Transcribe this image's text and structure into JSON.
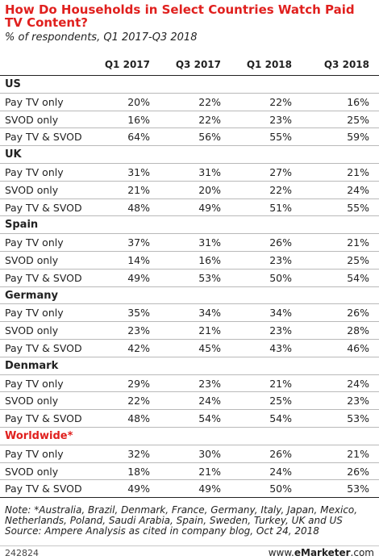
{
  "title": "How Do Households in Select Countries Watch Paid TV Content?",
  "subtitle": "% of respondents, Q1 2017-Q3 2018",
  "chart_data": {
    "type": "table",
    "columns": [
      "Q1 2017",
      "Q3 2017",
      "Q1 2018",
      "Q3 2018"
    ],
    "groups": [
      {
        "name": "US",
        "highlight": false,
        "rows": [
          {
            "label": "Pay TV only",
            "values": [
              "20%",
              "22%",
              "22%",
              "16%"
            ]
          },
          {
            "label": "SVOD only",
            "values": [
              "16%",
              "22%",
              "23%",
              "25%"
            ]
          },
          {
            "label": "Pay TV & SVOD",
            "values": [
              "64%",
              "56%",
              "55%",
              "59%"
            ]
          }
        ]
      },
      {
        "name": "UK",
        "highlight": false,
        "rows": [
          {
            "label": "Pay TV only",
            "values": [
              "31%",
              "31%",
              "27%",
              "21%"
            ]
          },
          {
            "label": "SVOD only",
            "values": [
              "21%",
              "20%",
              "22%",
              "24%"
            ]
          },
          {
            "label": "Pay TV & SVOD",
            "values": [
              "48%",
              "49%",
              "51%",
              "55%"
            ]
          }
        ]
      },
      {
        "name": "Spain",
        "highlight": false,
        "rows": [
          {
            "label": "Pay TV only",
            "values": [
              "37%",
              "31%",
              "26%",
              "21%"
            ]
          },
          {
            "label": "SVOD only",
            "values": [
              "14%",
              "16%",
              "23%",
              "25%"
            ]
          },
          {
            "label": "Pay TV & SVOD",
            "values": [
              "49%",
              "53%",
              "50%",
              "54%"
            ]
          }
        ]
      },
      {
        "name": "Germany",
        "highlight": false,
        "rows": [
          {
            "label": "Pay TV only",
            "values": [
              "35%",
              "34%",
              "34%",
              "26%"
            ]
          },
          {
            "label": "SVOD only",
            "values": [
              "23%",
              "21%",
              "23%",
              "28%"
            ]
          },
          {
            "label": "Pay TV & SVOD",
            "values": [
              "42%",
              "45%",
              "43%",
              "46%"
            ]
          }
        ]
      },
      {
        "name": "Denmark",
        "highlight": false,
        "rows": [
          {
            "label": "Pay TV only",
            "values": [
              "29%",
              "23%",
              "21%",
              "24%"
            ]
          },
          {
            "label": "SVOD only",
            "values": [
              "22%",
              "24%",
              "25%",
              "23%"
            ]
          },
          {
            "label": "Pay TV & SVOD",
            "values": [
              "48%",
              "54%",
              "54%",
              "53%"
            ]
          }
        ]
      },
      {
        "name": "Worldwide*",
        "highlight": true,
        "rows": [
          {
            "label": "Pay TV only",
            "values": [
              "32%",
              "30%",
              "26%",
              "21%"
            ]
          },
          {
            "label": "SVOD only",
            "values": [
              "18%",
              "21%",
              "24%",
              "26%"
            ]
          },
          {
            "label": "Pay TV & SVOD",
            "values": [
              "49%",
              "49%",
              "50%",
              "53%"
            ]
          }
        ]
      }
    ]
  },
  "notes": [
    "Note: *Australia, Brazil, Denmark, France, Germany, Italy, Japan, Mexico,",
    "Netherlands, Poland, Saudi Arabia, Spain, Sweden, Turkey, UK and US",
    "Source: Ampere Analysis as cited in company blog, Oct 24, 2018"
  ],
  "footer": {
    "id": "242824",
    "brand_prefix": "www.",
    "brand_name": "eMarketer",
    "brand_suffix": ".com"
  },
  "colors": {
    "accent": "#e0201e",
    "text": "#222222",
    "rule": "#b9b9b9"
  }
}
